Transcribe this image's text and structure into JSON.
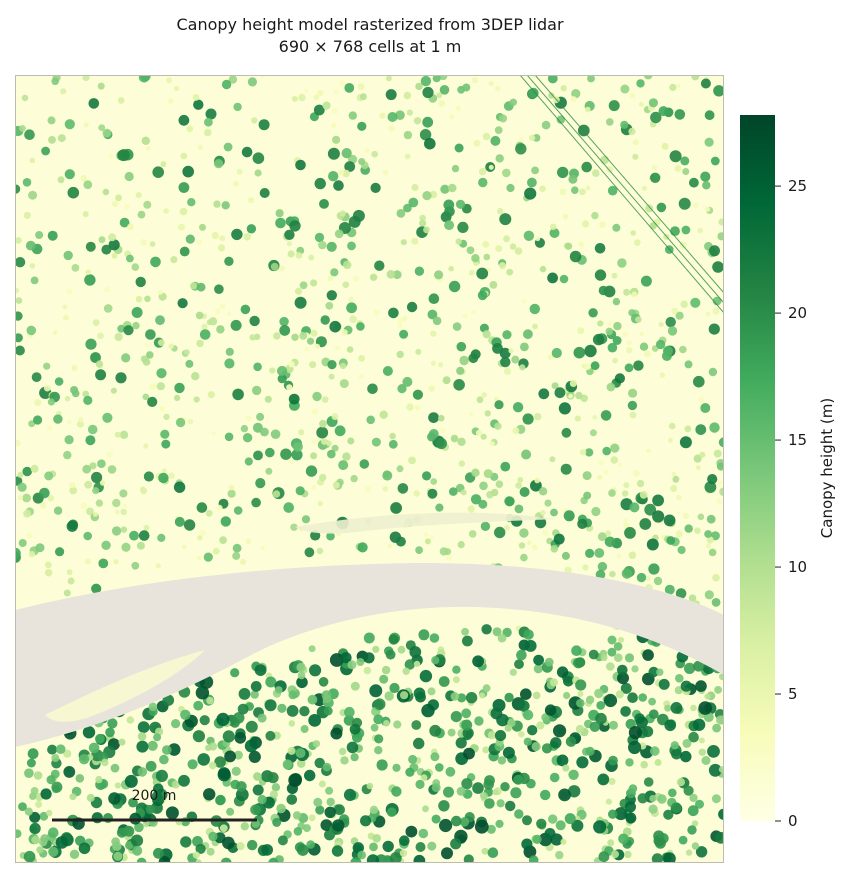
{
  "header": {
    "title_line1": "Canopy height model rasterized from 3DEP lidar",
    "title_line2": "690 × 768 cells at 1 m"
  },
  "scalebar": {
    "label": "200 m",
    "length_m": 200
  },
  "colorbar": {
    "label": "Canopy height (m)",
    "ticks": [
      0,
      5,
      10,
      15,
      20,
      25
    ],
    "range": [
      0,
      27.8
    ],
    "colormap": "YlGn",
    "stops": [
      "#ffffe5",
      "#f7fcb9",
      "#d9f0a3",
      "#addd8e",
      "#78c679",
      "#41ab5d",
      "#238443",
      "#006837",
      "#004529"
    ]
  },
  "chart_data": {
    "type": "heatmap",
    "title": "Canopy height model rasterized from 3DEP lidar",
    "subtitle": "690 × 768 cells at 1 m",
    "grid": {
      "cols": 690,
      "rows": 768,
      "cell_size_m": 1
    },
    "value_label": "Canopy height (m)",
    "value_range": [
      0,
      27.8
    ],
    "nodata_color": "#e8e4dc",
    "frame_color": "#bcbcb0",
    "annotations": [
      "200 m"
    ]
  }
}
